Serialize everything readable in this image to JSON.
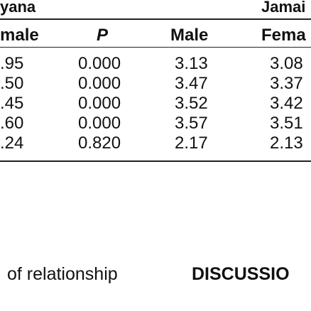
{
  "table": {
    "group_headers": [
      "yana",
      "Jamai"
    ],
    "columns": [
      "male",
      "P",
      "Male",
      "Fema"
    ],
    "rows": [
      [
        ".95",
        "0.000",
        "3.13",
        "3.08"
      ],
      [
        ".50",
        "0.000",
        "3.47",
        "3.37"
      ],
      [
        ".45",
        "0.000",
        "3.52",
        "3.42"
      ],
      [
        ".60",
        "0.000",
        "3.57",
        "3.51"
      ],
      [
        ".24",
        "0.820",
        "2.17",
        "2.13"
      ]
    ]
  },
  "text": {
    "body": "of  relationship",
    "heading": "DISCUSSIO"
  }
}
